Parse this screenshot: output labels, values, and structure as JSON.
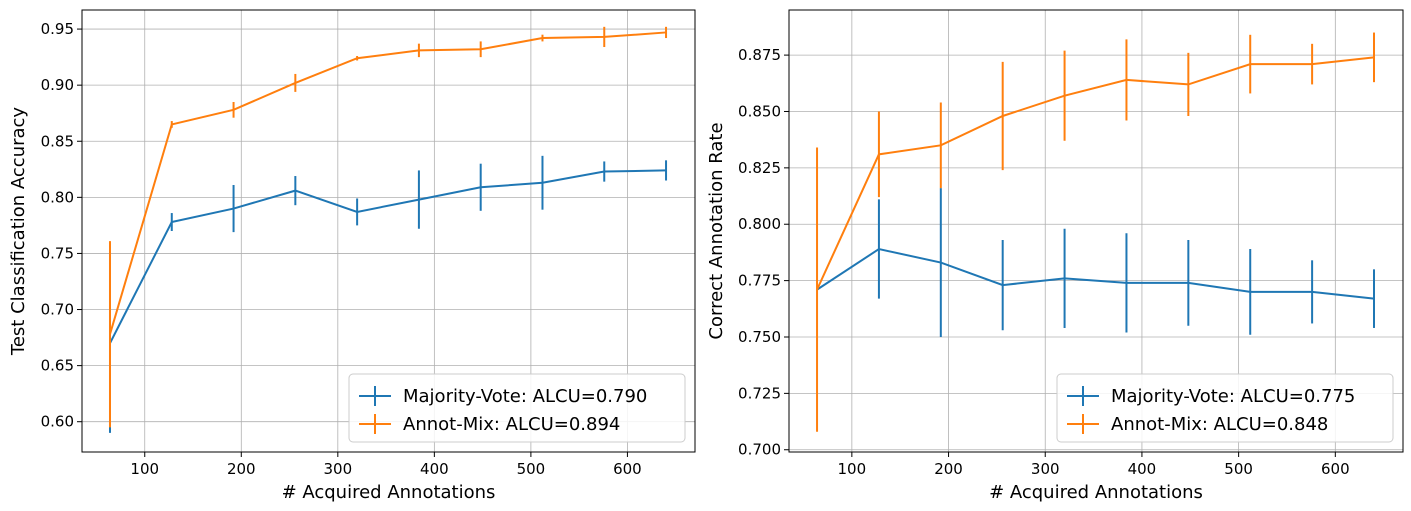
{
  "chart_data": [
    {
      "type": "line",
      "title": "",
      "xlabel": "# Acquired Annotations",
      "ylabel": "Test Classification Accuracy",
      "xlim": [
        35,
        670
      ],
      "ylim": [
        0.573,
        0.967
      ],
      "xticks": [
        100,
        200,
        300,
        400,
        500,
        600
      ],
      "yticks": [
        0.6,
        0.65,
        0.7,
        0.75,
        0.8,
        0.85,
        0.9,
        0.95
      ],
      "ytick_labels": [
        "0.60",
        "0.65",
        "0.70",
        "0.75",
        "0.80",
        "0.85",
        "0.90",
        "0.95"
      ],
      "grid": true,
      "legend_position": "lower-right",
      "x": [
        64,
        128,
        192,
        256,
        320,
        384,
        448,
        512,
        576,
        640
      ],
      "series": [
        {
          "name": "Majority-Vote: ALCU=0.790",
          "color": "#1f77b4",
          "values": [
            0.67,
            0.778,
            0.79,
            0.806,
            0.787,
            0.798,
            0.809,
            0.813,
            0.823,
            0.824
          ],
          "errors": [
            0.08,
            0.008,
            0.021,
            0.013,
            0.012,
            0.026,
            0.021,
            0.024,
            0.009,
            0.009
          ]
        },
        {
          "name": "Annot-Mix: ALCU=0.894",
          "color": "#ff7f0e",
          "values": [
            0.678,
            0.865,
            0.878,
            0.902,
            0.924,
            0.931,
            0.932,
            0.942,
            0.943,
            0.947
          ],
          "errors": [
            0.083,
            0.003,
            0.007,
            0.008,
            0.002,
            0.006,
            0.007,
            0.003,
            0.009,
            0.005
          ]
        }
      ]
    },
    {
      "type": "line",
      "title": "",
      "xlabel": "# Acquired Annotations",
      "ylabel": "Correct Annotation Rate",
      "xlim": [
        35,
        670
      ],
      "ylim": [
        0.699,
        0.895
      ],
      "xticks": [
        100,
        200,
        300,
        400,
        500,
        600
      ],
      "yticks": [
        0.7,
        0.725,
        0.75,
        0.775,
        0.8,
        0.825,
        0.85,
        0.875
      ],
      "ytick_labels": [
        "0.700",
        "0.725",
        "0.750",
        "0.775",
        "0.800",
        "0.825",
        "0.850",
        "0.875"
      ],
      "grid": true,
      "legend_position": "lower-right",
      "x": [
        64,
        128,
        192,
        256,
        320,
        384,
        448,
        512,
        576,
        640
      ],
      "series": [
        {
          "name": "Majority-Vote: ALCU=0.775",
          "color": "#1f77b4",
          "values": [
            0.771,
            0.789,
            0.783,
            0.773,
            0.776,
            0.774,
            0.774,
            0.77,
            0.77,
            0.767
          ],
          "errors": [
            0.0,
            0.022,
            0.033,
            0.02,
            0.022,
            0.022,
            0.019,
            0.019,
            0.014,
            0.013
          ]
        },
        {
          "name": "Annot-Mix: ALCU=0.848",
          "color": "#ff7f0e",
          "values": [
            0.771,
            0.831,
            0.835,
            0.848,
            0.857,
            0.864,
            0.862,
            0.871,
            0.871,
            0.874
          ],
          "errors": [
            0.063,
            0.019,
            0.019,
            0.024,
            0.02,
            0.018,
            0.014,
            0.013,
            0.009,
            0.011
          ]
        }
      ]
    }
  ]
}
